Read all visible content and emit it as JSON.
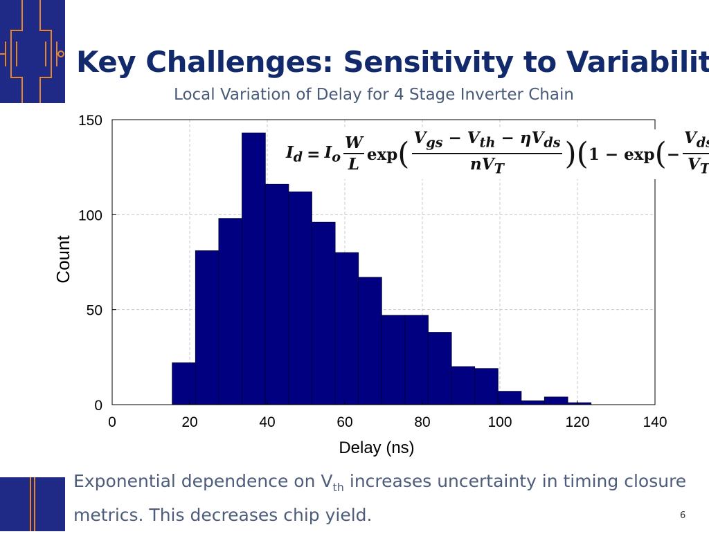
{
  "slide": {
    "title": "Key Challenges: Sensitivity to Variability",
    "footer_part1": "Exponential dependence on V",
    "footer_sub": "th",
    "footer_part2": " increases uncertainty in timing closure metrics. This decreases chip yield.",
    "page_number": "6"
  },
  "colors": {
    "brand_dark_blue": "#1f2a86",
    "logo_orange": "#e8862c",
    "title_color": "#122a6b",
    "bar_fill": "#000080"
  },
  "equation": {
    "lhs": "I",
    "lhs_sub": "d",
    "equals": "=",
    "io": "I",
    "io_sub": "o",
    "w": "W",
    "l": "L",
    "exp1": "exp",
    "num_a": "V",
    "num_a_sub": "gs",
    "minus1": " − ",
    "num_b": "V",
    "num_b_sub": "th",
    "minus2": " − ",
    "eta": "ηV",
    "eta_sub": "ds",
    "den": "nV",
    "den_sub": "T",
    "one_minus": "1 − exp",
    "neg": "−",
    "vds": "V",
    "vds_sub": "ds",
    "vt": "V",
    "vt_sub": "T"
  },
  "chart_data": {
    "type": "bar",
    "title": "Local Variation of Delay for 4 Stage Inverter Chain",
    "xlabel": "Delay (ns)",
    "ylabel": "Count",
    "xlim": [
      0,
      140
    ],
    "ylim": [
      0,
      150
    ],
    "xticks": [
      "0",
      "20",
      "40",
      "60",
      "80",
      "100",
      "120",
      "140"
    ],
    "yticks": [
      "0",
      "50",
      "100",
      "150"
    ],
    "bin_edges": [
      15.5,
      21.5,
      27.5,
      33.5,
      39.5,
      45.5,
      51.5,
      57.5,
      63.5,
      69.5,
      75.5,
      81.5,
      87.5,
      93.5,
      99.5,
      105.5,
      111.5,
      117.5,
      123.5
    ],
    "values": [
      22,
      81,
      98,
      143,
      116,
      112,
      96,
      80,
      67,
      47,
      47,
      38,
      20,
      19,
      7,
      2,
      4,
      1
    ],
    "grid": true
  }
}
